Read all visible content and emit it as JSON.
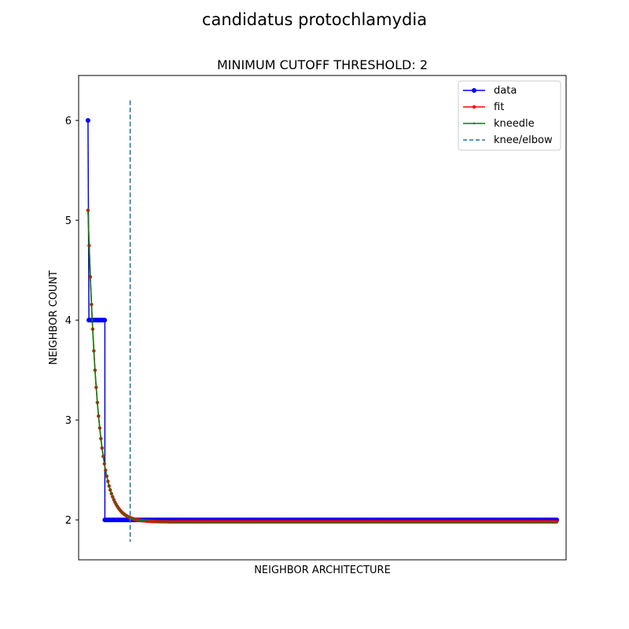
{
  "figure": {
    "suptitle": "candidatus protochlamydia"
  },
  "chart_data": {
    "type": "line",
    "title": "MINIMUM CUTOFF THRESHOLD: 2",
    "xlabel": "NEIGHBOR ARCHITECTURE",
    "ylabel": "NEIGHBOR COUNT",
    "x_ticks_visible": false,
    "xlim": [
      -0.02,
      1.02
    ],
    "ylim": [
      1.6,
      6.45
    ],
    "yticks": [
      2,
      3,
      4,
      5,
      6
    ],
    "knee_x": 0.09,
    "knee_line_ylim": [
      1.78,
      6.2
    ],
    "legend_position": "top-right",
    "grid": false,
    "series": [
      {
        "name": "data",
        "color": "#0000ff",
        "style": "solid",
        "marker": "circle",
        "points": [
          [
            0.0,
            6
          ],
          [
            0.002,
            4
          ],
          [
            0.036,
            4
          ],
          [
            0.036,
            2
          ],
          [
            1.0,
            2
          ]
        ]
      },
      {
        "name": "fit",
        "color": "#ff0000",
        "style": "solid",
        "marker": "dot",
        "model": "exponential decay",
        "start_y": 5.1,
        "asymptote_y": 1.98,
        "decay_per_x": 48
      },
      {
        "name": "kneedle",
        "color": "#008000",
        "style": "solid",
        "marker": "small-dot",
        "model": "exponential decay",
        "start_y": 5.1,
        "asymptote_y": 1.98,
        "decay_per_x": 48
      },
      {
        "name": "knee/elbow",
        "color": "#1f77b4",
        "style": "dashed",
        "marker": "none"
      }
    ]
  }
}
